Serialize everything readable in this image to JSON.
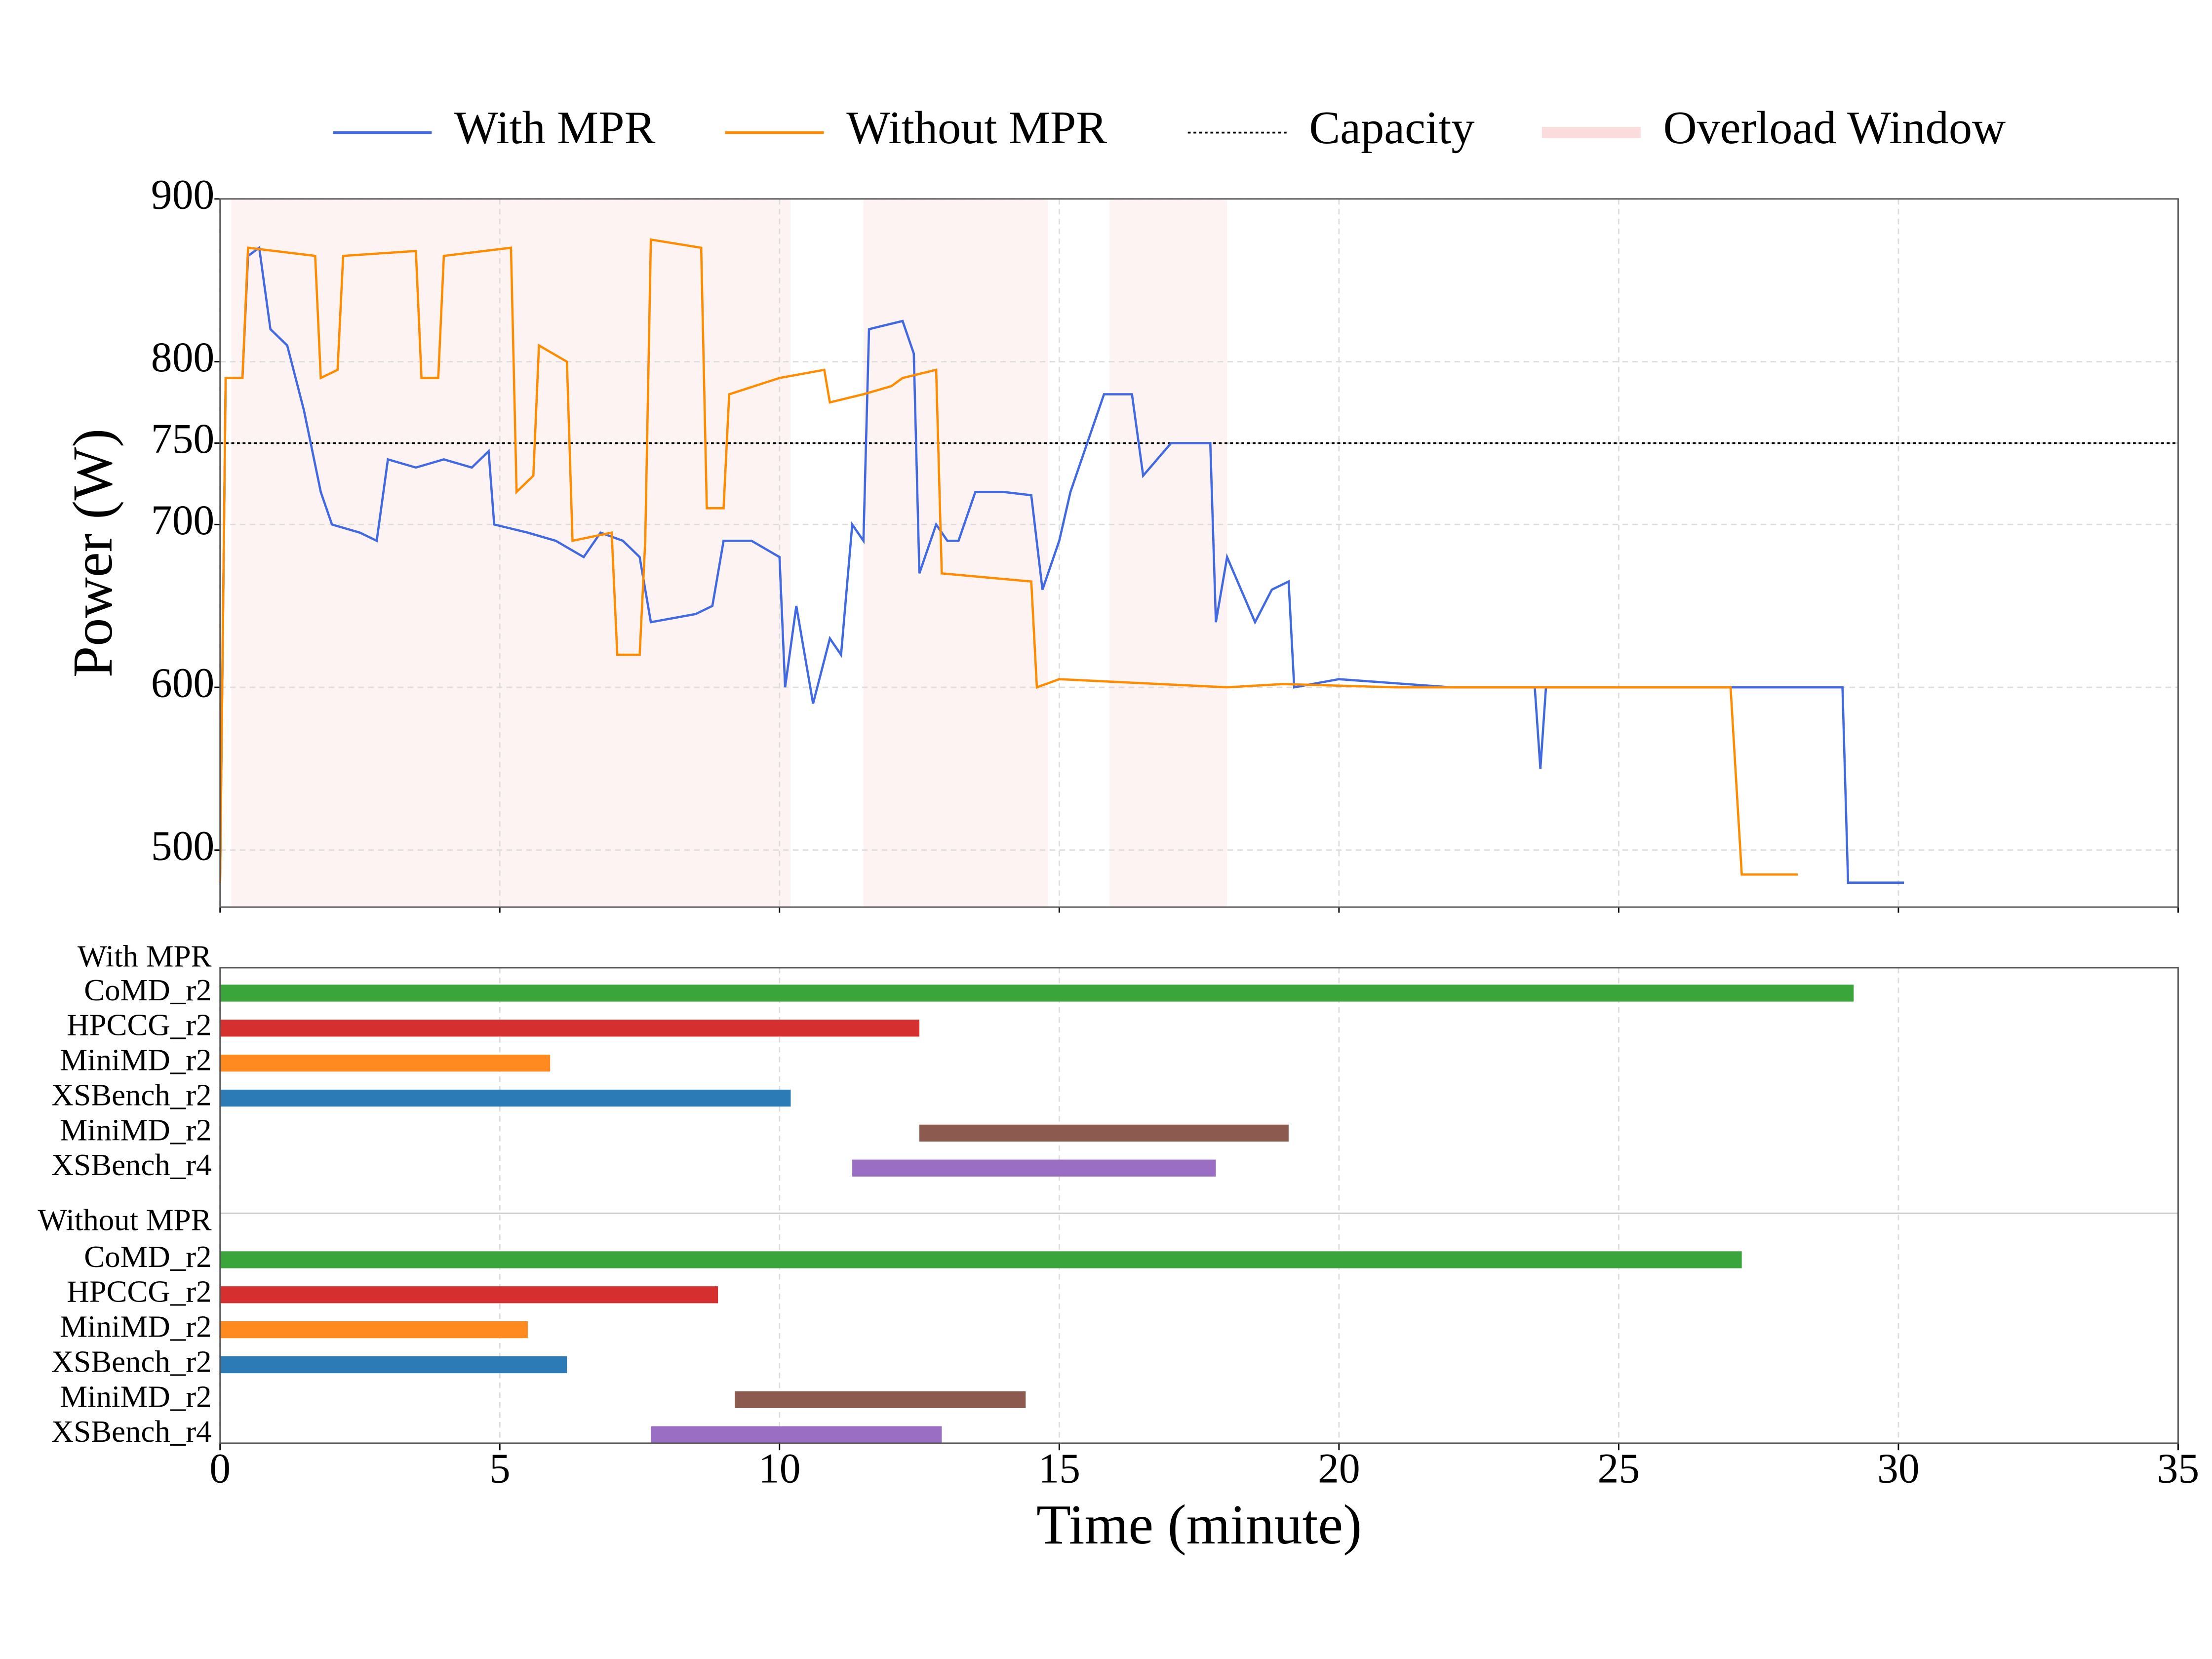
{
  "chart_data": [
    {
      "type": "line",
      "y_label": "Power (W)",
      "xlim": [
        0,
        35
      ],
      "xticks": [
        0,
        5,
        10,
        15,
        20,
        25,
        30,
        35
      ],
      "ylim": [
        465,
        900
      ],
      "yticks": [
        500,
        600,
        700,
        750,
        800,
        900
      ],
      "grid": true,
      "series": [
        {
          "name": "With MPR",
          "color": "#4169e1",
          "x": [
            0,
            0.1,
            0.4,
            0.5,
            0.7,
            0.9,
            1.2,
            1.5,
            1.8,
            2.0,
            2.5,
            2.8,
            3.0,
            3.5,
            4.0,
            4.5,
            4.8,
            4.9,
            5.5,
            6.0,
            6.5,
            6.8,
            7.2,
            7.5,
            7.7,
            8.5,
            8.8,
            9.0,
            9.5,
            10.0,
            10.1,
            10.3,
            10.6,
            10.9,
            11.1,
            11.3,
            11.5,
            11.6,
            12.2,
            12.4,
            12.5,
            12.8,
            13.0,
            13.2,
            13.5,
            14.0,
            14.5,
            14.7,
            15.0,
            15.2,
            15.5,
            15.8,
            16.3,
            16.5,
            17.0,
            17.7,
            17.8,
            18.0,
            18.5,
            18.8,
            19.1,
            19.2,
            20,
            22,
            23.5,
            23.6,
            23.7,
            26,
            27,
            29.0,
            29.1,
            30.1
          ],
          "values": [
            480,
            790,
            790,
            865,
            870,
            820,
            810,
            770,
            720,
            700,
            695,
            690,
            740,
            735,
            740,
            735,
            745,
            700,
            695,
            690,
            680,
            695,
            690,
            680,
            640,
            645,
            650,
            690,
            690,
            680,
            600,
            650,
            590,
            630,
            620,
            700,
            690,
            820,
            825,
            805,
            670,
            700,
            690,
            690,
            720,
            720,
            718,
            660,
            690,
            720,
            750,
            780,
            780,
            730,
            750,
            750,
            640,
            680,
            640,
            660,
            665,
            600,
            605,
            600,
            600,
            550,
            600,
            600,
            600,
            600,
            480,
            480
          ]
        },
        {
          "name": "Without MPR",
          "color": "#ff8c00",
          "x": [
            0,
            0.1,
            0.4,
            0.5,
            1.7,
            1.8,
            2.1,
            2.2,
            3.5,
            3.6,
            3.9,
            4.0,
            5.2,
            5.3,
            5.6,
            5.7,
            6.2,
            6.3,
            7.0,
            7.1,
            7.5,
            7.6,
            7.7,
            8.6,
            8.7,
            9.0,
            9.1,
            10.0,
            10.8,
            10.9,
            11.5,
            12.0,
            12.2,
            12.8,
            12.9,
            14.5,
            14.6,
            15,
            18,
            19,
            21,
            24,
            27.0,
            27.2,
            28.2
          ],
          "values": [
            480,
            790,
            790,
            870,
            865,
            790,
            795,
            865,
            868,
            790,
            790,
            865,
            870,
            720,
            730,
            810,
            800,
            690,
            695,
            620,
            620,
            690,
            875,
            870,
            710,
            710,
            780,
            790,
            795,
            775,
            780,
            785,
            790,
            795,
            670,
            665,
            600,
            605,
            600,
            602,
            600,
            600,
            600,
            485,
            485
          ]
        }
      ],
      "capacity": {
        "label": "Capacity",
        "value": 750,
        "color": "#000000"
      },
      "overload": {
        "label": "Overload Window",
        "color": "#fbdcdc",
        "windows": [
          [
            0.2,
            10.2
          ],
          [
            11.5,
            14.8
          ],
          [
            15.9,
            18.0
          ]
        ]
      }
    },
    {
      "type": "gantt",
      "x_label": "Time (minute)",
      "xlim": [
        0,
        35
      ],
      "xticks": [
        0,
        5,
        10,
        15,
        20,
        25,
        30,
        35
      ],
      "grid": true,
      "groups": [
        {
          "name": "With MPR",
          "tasks": [
            {
              "name": "CoMD_r2",
              "start": 0,
              "end": 29.2,
              "color": "#3aa53a"
            },
            {
              "name": "HPCCG_r2",
              "start": 0,
              "end": 12.5,
              "color": "#d62f2f"
            },
            {
              "name": "MiniMD_r2",
              "start": 0,
              "end": 5.9,
              "color": "#ff8a1f"
            },
            {
              "name": "XSBench_r2",
              "start": 0,
              "end": 10.2,
              "color": "#2c7bb6"
            },
            {
              "name": "MiniMD_r2",
              "start": 12.5,
              "end": 19.1,
              "color": "#8c5a4f"
            },
            {
              "name": "XSBench_r4",
              "start": 11.3,
              "end": 17.8,
              "color": "#9a6fc3"
            }
          ]
        },
        {
          "name": "Without MPR",
          "tasks": [
            {
              "name": "CoMD_r2",
              "start": 0,
              "end": 27.2,
              "color": "#3aa53a"
            },
            {
              "name": "HPCCG_r2",
              "start": 0,
              "end": 8.9,
              "color": "#d62f2f"
            },
            {
              "name": "MiniMD_r2",
              "start": 0,
              "end": 5.5,
              "color": "#ff8a1f"
            },
            {
              "name": "XSBench_r2",
              "start": 0,
              "end": 6.2,
              "color": "#2c7bb6"
            },
            {
              "name": "MiniMD_r2",
              "start": 9.2,
              "end": 14.4,
              "color": "#8c5a4f"
            },
            {
              "name": "XSBench_r4",
              "start": 7.7,
              "end": 12.9,
              "color": "#9a6fc3"
            }
          ]
        }
      ]
    }
  ]
}
